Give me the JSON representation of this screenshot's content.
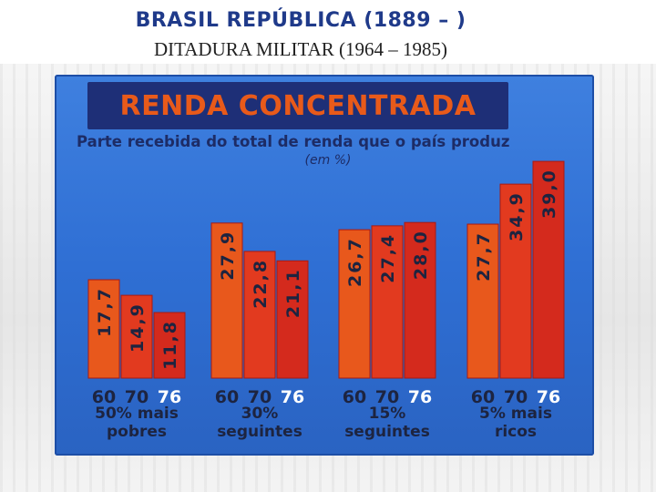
{
  "slide": {
    "title": "BRASIL REPÚBLICA (1889 – )",
    "subtitle": "DITADURA MILITAR (1964 – 1985)"
  },
  "board": {
    "header": "RENDA CONCENTRADA",
    "subtitle": "Parte recebida do total de renda que o país produz",
    "unit": "(em %)"
  },
  "chart_data": {
    "type": "bar",
    "title": "RENDA CONCENTRADA",
    "subtitle": "Parte recebida do total de renda que o país produz",
    "unit": "(em %)",
    "categories": [
      "50% mais pobres",
      "30% seguintes",
      "15% seguintes",
      "5% mais ricos"
    ],
    "x": [
      "60",
      "70",
      "76"
    ],
    "series": [
      {
        "name": "60",
        "values": [
          17.7,
          27.9,
          26.7,
          27.7
        ],
        "labels": [
          "17,7",
          "27,9",
          "26,7",
          "27,7"
        ],
        "color": "#e8581c"
      },
      {
        "name": "70",
        "values": [
          14.9,
          22.8,
          27.4,
          34.9
        ],
        "labels": [
          "14,9",
          "22,8",
          "27,4",
          "34,9"
        ],
        "color": "#e23a1f"
      },
      {
        "name": "76",
        "values": [
          11.8,
          21.1,
          28.0,
          39.0
        ],
        "labels": [
          "11,8",
          "21,1",
          "28,0",
          "39,0"
        ],
        "color": "#d42a1d"
      }
    ],
    "ylim": [
      0,
      40
    ],
    "grid": false,
    "legend": "none",
    "colors": {
      "board": "#2f6fd4",
      "header": "#1e2f77",
      "header_text": "#e85a1a",
      "year_dark": "#1d2440",
      "year_highlight": "#ffffff",
      "value_text": "#1d2440"
    }
  }
}
